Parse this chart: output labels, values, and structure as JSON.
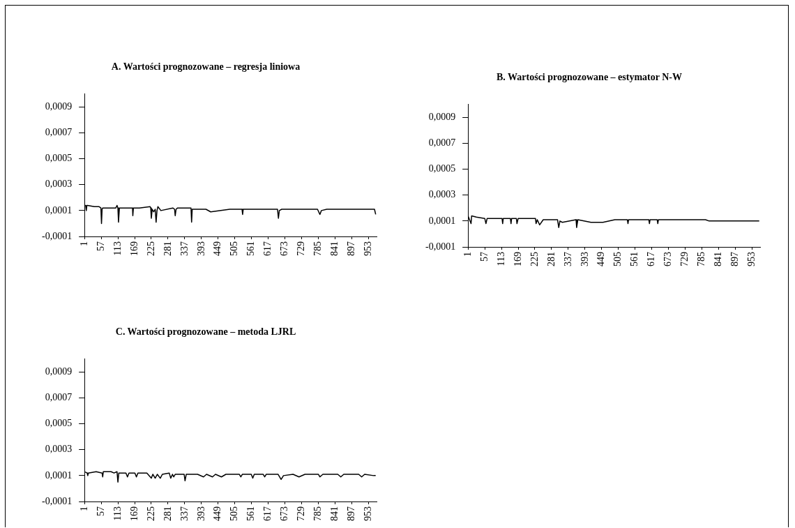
{
  "chart_data": [
    {
      "type": "line",
      "title": "A. Wartości prognozowane – regresja liniowa",
      "xlim": [
        1,
        980
      ],
      "xticks": [
        1,
        57,
        113,
        169,
        225,
        281,
        337,
        393,
        449,
        505,
        561,
        617,
        673,
        729,
        785,
        841,
        897,
        953
      ],
      "ylim": [
        -0.0001,
        0.001
      ],
      "yticks": [
        {
          "value": -0.0001,
          "label": "-0,0001"
        },
        {
          "value": 0.0001,
          "label": "0,0001"
        },
        {
          "value": 0.0003,
          "label": "0,0003"
        },
        {
          "value": 0.0005,
          "label": "0,0005"
        },
        {
          "value": 0.0007,
          "label": "0,0007"
        },
        {
          "value": 0.0009,
          "label": "0,0009"
        }
      ],
      "grid": false,
      "legend": false,
      "marker": "none",
      "line_style": "solid",
      "series": [
        {
          "color": "#000000",
          "x": [
            1,
            5,
            7,
            9,
            11,
            34,
            50,
            56,
            58,
            60,
            62,
            106,
            110,
            113,
            115,
            118,
            120,
            160,
            162,
            163,
            165,
            185,
            221,
            223,
            225,
            228,
            233,
            238,
            241,
            244,
            247,
            257,
            297,
            303,
            305,
            308,
            313,
            358,
            360,
            362,
            364,
            408,
            424,
            488,
            529,
            531,
            533,
            551,
            631,
            648,
            651,
            654,
            662,
            782,
            790,
            795,
            813,
            917,
            933,
            973,
            977
          ],
          "values": [
            0.00014,
            0.00014,
            0.0001,
            0.00014,
            0.00014,
            0.00013,
            0.00013,
            0.00012,
            0,
            0.00011,
            0.00012,
            0.00012,
            0.00014,
            0.00012,
            1e-05,
            0.00012,
            0.00012,
            0.00012,
            0.00012,
            6e-05,
            0.00012,
            0.00012,
            0.00013,
            0.00012,
            4e-05,
            0.00011,
            9e-05,
            0.00011,
            1e-05,
            0.0001,
            0.00013,
            0.0001,
            0.00012,
            0.00011,
            6e-05,
            0.00011,
            0.00012,
            0.00012,
            1e-05,
            0.00011,
            0.00011,
            0.00011,
            9e-05,
            0.00011,
            0.00011,
            7e-05,
            0.00011,
            0.00011,
            0.00011,
            0.00011,
            4e-05,
            0.0001,
            0.00011,
            0.00011,
            7e-05,
            0.0001,
            0.00011,
            0.00011,
            0.00011,
            0.00011,
            7e-05
          ]
        }
      ]
    },
    {
      "type": "line",
      "title": "B. Wartości prognozowane – estymator N-W",
      "xlim": [
        1,
        980
      ],
      "xticks": [
        1,
        57,
        113,
        169,
        225,
        281,
        337,
        393,
        449,
        505,
        561,
        617,
        673,
        729,
        785,
        841,
        897,
        953
      ],
      "ylim": [
        -0.0001,
        0.001
      ],
      "yticks": [
        {
          "value": -0.0001,
          "label": "-0,0001"
        },
        {
          "value": 0.0001,
          "label": "0,0001"
        },
        {
          "value": 0.0003,
          "label": "0,0003"
        },
        {
          "value": 0.0005,
          "label": "0,0005"
        },
        {
          "value": 0.0007,
          "label": "0,0007"
        },
        {
          "value": 0.0009,
          "label": "0,0009"
        }
      ],
      "grid": false,
      "legend": false,
      "marker": "none",
      "line_style": "solid",
      "series": [
        {
          "color": "#000000",
          "x": [
            1,
            11,
            13,
            29,
            57,
            61,
            65,
            115,
            117,
            119,
            143,
            145,
            147,
            163,
            165,
            169,
            181,
            227,
            229,
            233,
            241,
            253,
            301,
            305,
            309,
            317,
            363,
            365,
            369,
            413,
            453,
            493,
            535,
            537,
            539,
            607,
            609,
            611,
            635,
            637,
            639,
            653,
            797,
            809,
            813,
            977
          ],
          "values": [
            0.00014,
            8e-05,
            0.00014,
            0.00013,
            0.00012,
            8e-05,
            0.00012,
            0.00012,
            8e-05,
            0.00012,
            0.00012,
            8e-05,
            0.00012,
            0.00012,
            8e-05,
            0.00012,
            0.00012,
            0.00012,
            8e-05,
            0.00011,
            7e-05,
            0.00011,
            0.00011,
            5e-05,
            0.0001,
            9e-05,
            0.00011,
            5e-05,
            0.00011,
            9e-05,
            9e-05,
            0.00011,
            0.00011,
            8e-05,
            0.00011,
            0.00011,
            8e-05,
            0.00011,
            0.00011,
            8e-05,
            0.00011,
            0.00011,
            0.00011,
            0.0001,
            0.0001,
            0.0001
          ]
        }
      ]
    },
    {
      "type": "line",
      "title": "C. Wartości prognozowane – metoda LJRL",
      "xlim": [
        1,
        980
      ],
      "xticks": [
        1,
        57,
        113,
        169,
        225,
        281,
        337,
        393,
        449,
        505,
        561,
        617,
        673,
        729,
        785,
        841,
        897,
        953
      ],
      "ylim": [
        -0.0001,
        0.001
      ],
      "yticks": [
        {
          "value": -0.0001,
          "label": "-0,0001"
        },
        {
          "value": 0.0001,
          "label": "0,0001"
        },
        {
          "value": 0.0003,
          "label": "0,0003"
        },
        {
          "value": 0.0005,
          "label": "0,0005"
        },
        {
          "value": 0.0007,
          "label": "0,0007"
        },
        {
          "value": 0.0009,
          "label": "0,0009"
        }
      ],
      "grid": false,
      "legend": false,
      "marker": "none",
      "line_style": "solid",
      "series": [
        {
          "color": "#000000",
          "x": [
            1,
            10,
            12,
            14,
            40,
            60,
            62,
            64,
            90,
            100,
            110,
            113,
            116,
            140,
            145,
            150,
            170,
            175,
            180,
            210,
            225,
            230,
            238,
            245,
            255,
            262,
            285,
            290,
            296,
            300,
            305,
            335,
            338,
            342,
            380,
            400,
            410,
            430,
            440,
            460,
            475,
            520,
            525,
            530,
            560,
            565,
            570,
            600,
            605,
            610,
            650,
            660,
            668,
            700,
            720,
            740,
            785,
            790,
            800,
            850,
            860,
            870,
            920,
            930,
            940,
            970,
            977
          ],
          "values": [
            0.00013,
            0.00012,
            0.0001,
            0.00012,
            0.00013,
            0.00012,
            9e-05,
            0.00013,
            0.00013,
            0.00012,
            0.00013,
            5e-05,
            0.00012,
            0.00012,
            9e-05,
            0.00012,
            0.00012,
            9e-05,
            0.00012,
            0.00012,
            8e-05,
            0.00011,
            8e-05,
            0.00011,
            8e-05,
            0.00011,
            0.00012,
            8e-05,
            0.00011,
            9e-05,
            0.00011,
            0.00011,
            6e-05,
            0.00011,
            0.00011,
            9e-05,
            0.00011,
            9e-05,
            0.00011,
            9e-05,
            0.00011,
            0.00011,
            9e-05,
            0.00011,
            0.00011,
            8e-05,
            0.00011,
            0.00011,
            9e-05,
            0.00011,
            0.00011,
            7e-05,
            0.0001,
            0.00011,
            9e-05,
            0.00011,
            0.00011,
            9e-05,
            0.00011,
            0.00011,
            9e-05,
            0.00011,
            0.00011,
            9e-05,
            0.00011,
            0.0001,
            0.0001
          ]
        }
      ]
    }
  ]
}
